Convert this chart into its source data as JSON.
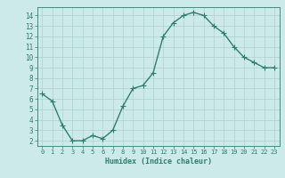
{
  "x": [
    0,
    1,
    2,
    3,
    4,
    5,
    6,
    7,
    8,
    9,
    10,
    11,
    12,
    13,
    14,
    15,
    16,
    17,
    18,
    19,
    20,
    21,
    22,
    23
  ],
  "y": [
    6.5,
    5.8,
    3.5,
    2.0,
    2.0,
    2.5,
    2.2,
    3.0,
    5.3,
    7.0,
    7.3,
    8.5,
    12.0,
    13.3,
    14.0,
    14.3,
    14.0,
    13.0,
    12.3,
    11.0,
    10.0,
    9.5,
    9.0,
    9.0
  ],
  "line_color": "#2e7d6e",
  "bg_color": "#cdeaea",
  "grid_color": "#afd0d0",
  "xlabel": "Humidex (Indice chaleur)",
  "xlim": [
    -0.5,
    23.5
  ],
  "ylim": [
    1.5,
    14.8
  ],
  "yticks": [
    2,
    3,
    4,
    5,
    6,
    7,
    8,
    9,
    10,
    11,
    12,
    13,
    14
  ],
  "xticks": [
    0,
    1,
    2,
    3,
    4,
    5,
    6,
    7,
    8,
    9,
    10,
    11,
    12,
    13,
    14,
    15,
    16,
    17,
    18,
    19,
    20,
    21,
    22,
    23
  ],
  "font_color": "#2e7d6e",
  "marker": "+",
  "linewidth": 1.0,
  "markersize": 4
}
